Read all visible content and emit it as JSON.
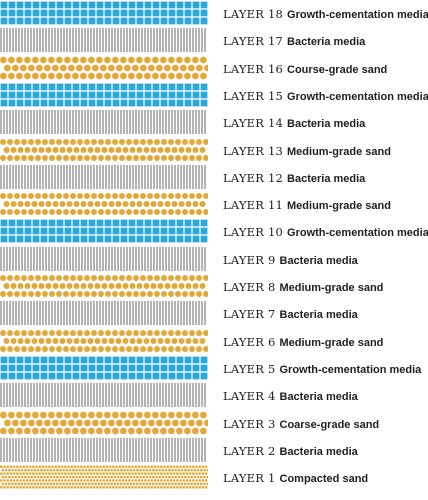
{
  "colors": {
    "growth": "#2ba7de",
    "growth_line": "#ffffff",
    "sand": "#e3a838",
    "sand_bg": "#ffffff",
    "bacteria": "#8a8a8a",
    "bacteria_bg": "#ffffff",
    "text": "#1f1f1f"
  },
  "layers": [
    {
      "layer": "LAYER 18",
      "media": "Growth-cementation media",
      "pattern": "growth-grid-icon"
    },
    {
      "layer": "LAYER 17",
      "media": "Bacteria media",
      "pattern": "bacteria-lines-icon"
    },
    {
      "layer": "LAYER 16",
      "media": "Course-grade sand",
      "pattern": "coarse-sand-dots-icon"
    },
    {
      "layer": "LAYER 15",
      "media": "Growth-cementation media",
      "pattern": "growth-grid-icon"
    },
    {
      "layer": "LAYER 14",
      "media": "Bacteria media",
      "pattern": "bacteria-lines-icon"
    },
    {
      "layer": "LAYER 13",
      "media": "Medium-grade sand",
      "pattern": "medium-sand-dots-icon"
    },
    {
      "layer": "LAYER 12",
      "media": "Bacteria media",
      "pattern": "bacteria-lines-icon"
    },
    {
      "layer": "LAYER 11",
      "media": "Medium-grade sand",
      "pattern": "medium-sand-dots-icon"
    },
    {
      "layer": "LAYER 10",
      "media": "Growth-cementation media",
      "pattern": "growth-grid-icon"
    },
    {
      "layer": "LAYER 9",
      "media": "Bacteria media",
      "pattern": "bacteria-lines-icon"
    },
    {
      "layer": "LAYER 8",
      "media": "Medium-grade sand",
      "pattern": "medium-sand-dots-icon"
    },
    {
      "layer": "LAYER 7",
      "media": "Bacteria media",
      "pattern": "bacteria-lines-icon"
    },
    {
      "layer": "LAYER 6",
      "media": "Medium-grade sand",
      "pattern": "medium-sand-dots-icon"
    },
    {
      "layer": "LAYER 5",
      "media": "Growth-cementation media",
      "pattern": "growth-grid-icon"
    },
    {
      "layer": "LAYER 4",
      "media": "Bacteria media",
      "pattern": "bacteria-lines-icon"
    },
    {
      "layer": "LAYER 3",
      "media": "Coarse-grade sand",
      "pattern": "coarse-sand-dots-icon"
    },
    {
      "layer": "LAYER 2",
      "media": "Bacteria media",
      "pattern": "bacteria-lines-icon"
    },
    {
      "layer": "LAYER 1",
      "media": "Compacted sand",
      "pattern": "compacted-sand-dots-icon"
    }
  ]
}
